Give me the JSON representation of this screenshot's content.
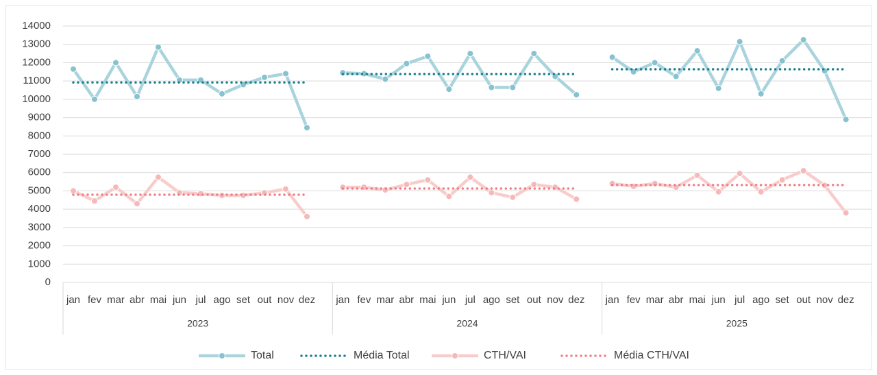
{
  "chart_data": {
    "type": "line",
    "groups": [
      "2023",
      "2024",
      "2025"
    ],
    "categories": [
      "jan",
      "fev",
      "mar",
      "abr",
      "mai",
      "jun",
      "jul",
      "ago",
      "set",
      "out",
      "nov",
      "dez",
      "jan",
      "fev",
      "mar",
      "abr",
      "mai",
      "jun",
      "jul",
      "ago",
      "set",
      "out",
      "nov",
      "dez",
      "jan",
      "fev",
      "mar",
      "abr",
      "mai",
      "jun",
      "jul",
      "ago",
      "set",
      "out",
      "nov",
      "dez"
    ],
    "ylim": [
      0,
      14000
    ],
    "yticks": [
      0,
      1000,
      2000,
      3000,
      4000,
      5000,
      6000,
      7000,
      8000,
      9000,
      10000,
      11000,
      12000,
      13000,
      14000
    ],
    "grid": true,
    "legend": "bottom",
    "series": [
      {
        "name": "Total",
        "color": "#a9d4dd",
        "marker_color": "#86c2cf",
        "style": "solid",
        "markers": true,
        "values": [
          11650,
          10000,
          12000,
          10150,
          12850,
          11050,
          11050,
          10300,
          10800,
          11200,
          11400,
          8450,
          11450,
          11400,
          11100,
          11950,
          12350,
          10550,
          12500,
          10650,
          10650,
          12500,
          11250,
          10250,
          12300,
          11500,
          12000,
          11250,
          12650,
          10600,
          13150,
          10300,
          12100,
          13250,
          11550,
          8900
        ]
      },
      {
        "name": "Média Total",
        "color": "#1b7f8e",
        "style": "dotted",
        "markers": false,
        "values": [
          10920,
          10920,
          10920,
          10920,
          10920,
          10920,
          10920,
          10920,
          10920,
          10920,
          10920,
          10920,
          11380,
          11380,
          11380,
          11380,
          11380,
          11380,
          11380,
          11380,
          11380,
          11380,
          11380,
          11380,
          11640,
          11640,
          11640,
          11640,
          11640,
          11640,
          11640,
          11640,
          11640,
          11640,
          11640,
          11640
        ]
      },
      {
        "name": "CTH/VAI",
        "color": "#f9cccc",
        "marker_color": "#f5b9b9",
        "style": "solid",
        "markers": true,
        "values": [
          5000,
          4450,
          5200,
          4300,
          5750,
          4900,
          4850,
          4750,
          4750,
          4900,
          5100,
          3600,
          5200,
          5200,
          5050,
          5350,
          5600,
          4700,
          5750,
          4900,
          4650,
          5350,
          5200,
          4550,
          5400,
          5250,
          5400,
          5200,
          5850,
          4950,
          5950,
          4950,
          5600,
          6100,
          5300,
          3800
        ]
      },
      {
        "name": "Média CTH/VAI",
        "color": "#ef7f86",
        "style": "dotted",
        "markers": false,
        "values": [
          4790,
          4790,
          4790,
          4790,
          4790,
          4790,
          4790,
          4790,
          4790,
          4790,
          4790,
          4790,
          5130,
          5130,
          5130,
          5130,
          5130,
          5130,
          5130,
          5130,
          5130,
          5130,
          5130,
          5130,
          5320,
          5320,
          5320,
          5320,
          5320,
          5320,
          5320,
          5320,
          5320,
          5320,
          5320,
          5320
        ]
      }
    ]
  }
}
